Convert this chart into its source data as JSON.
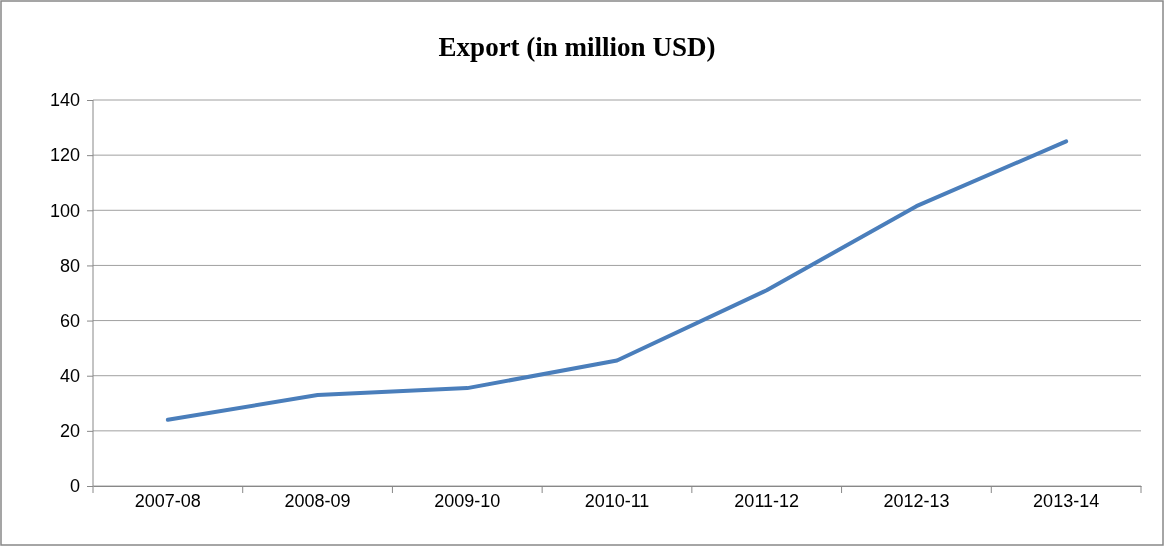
{
  "chart_data": {
    "type": "line",
    "title": "Export (in million USD)",
    "categories": [
      "2007-08",
      "2008-09",
      "2009-10",
      "2010-11",
      "2011-12",
      "2012-13",
      "2013-14"
    ],
    "series": [
      {
        "color": "#4a7ebb",
        "values": [
          24,
          33,
          35.5,
          45.5,
          71,
          101.5,
          125
        ]
      }
    ],
    "ylim": [
      0,
      140
    ],
    "yticks": [
      0,
      20,
      40,
      60,
      80,
      100,
      120,
      140
    ],
    "grid": "y",
    "marker": "none",
    "line_style": "solid"
  }
}
